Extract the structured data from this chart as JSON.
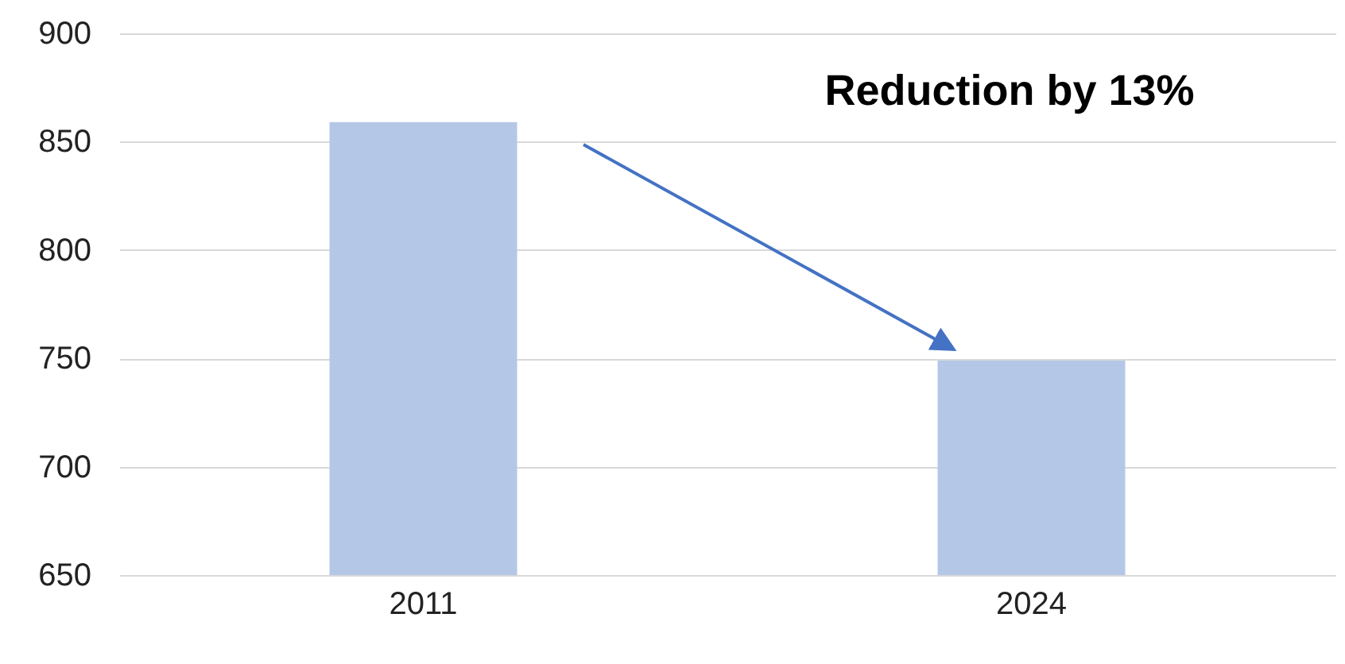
{
  "chart_data": {
    "type": "bar",
    "categories": [
      "2011",
      "2024"
    ],
    "values": [
      859,
      749
    ],
    "color": "#b4c7e7",
    "ylim": [
      650,
      900
    ],
    "yticks": [
      650,
      700,
      750,
      800,
      850,
      900
    ],
    "grid": "y",
    "annotations": [
      "Reduction by 13%"
    ]
  }
}
